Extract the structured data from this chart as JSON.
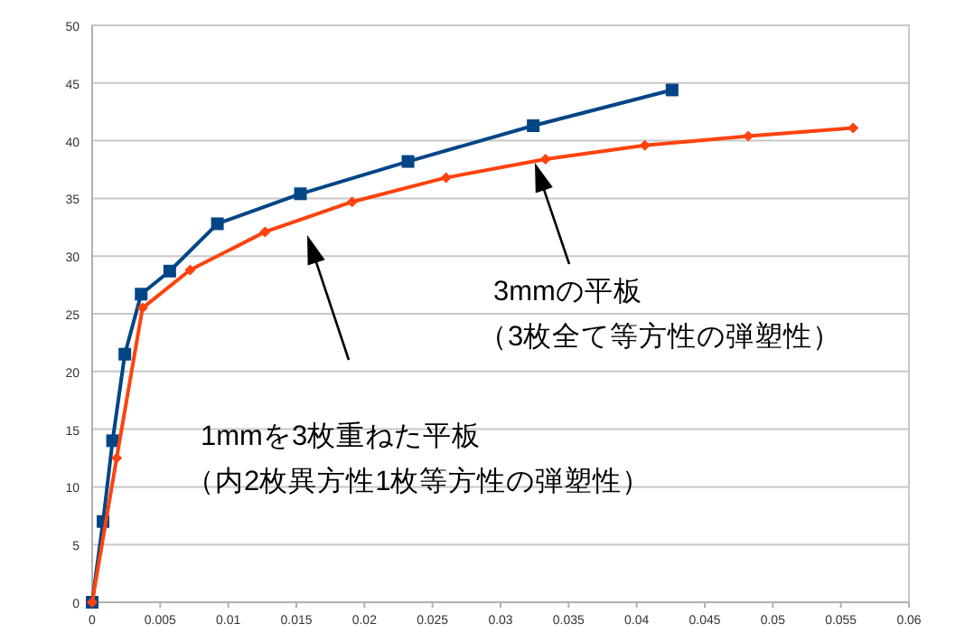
{
  "chart_data": {
    "type": "line",
    "xlim": [
      0,
      0.06
    ],
    "ylim": [
      0,
      50
    ],
    "xticks": [
      0,
      0.005,
      0.01,
      0.015,
      0.02,
      0.025,
      0.03,
      0.035,
      0.04,
      0.045,
      0.05,
      0.055,
      0.06
    ],
    "yticks": [
      0,
      5,
      10,
      15,
      20,
      25,
      30,
      35,
      40,
      45,
      50
    ],
    "grid": "y",
    "series": [
      {
        "color": "#004586",
        "marker": "square",
        "x": [
          0,
          0.0008,
          0.0015,
          0.0024,
          0.0036,
          0.0057,
          0.0092,
          0.0153,
          0.0232,
          0.0324,
          0.0426
        ],
        "values": [
          0,
          7,
          14,
          21.5,
          26.7,
          28.7,
          32.8,
          35.4,
          38.2,
          41.3,
          44.4
        ]
      },
      {
        "color": "#ff420e",
        "marker": "diamond",
        "x": [
          0,
          0.0018,
          0.0037,
          0.0072,
          0.0127,
          0.0191,
          0.026,
          0.0333,
          0.0406,
          0.0482,
          0.0559
        ],
        "values": [
          0,
          12.5,
          25.5,
          28.8,
          32.1,
          34.7,
          36.8,
          38.4,
          39.6,
          40.4,
          41.1
        ]
      }
    ],
    "annotations": [
      "1mmを3枚重ねた平板",
      "（内2枚異方性1枚等方性の弾塑性）",
      "3mmの平板",
      "（3枚全て等方性の弾塑性）"
    ]
  }
}
